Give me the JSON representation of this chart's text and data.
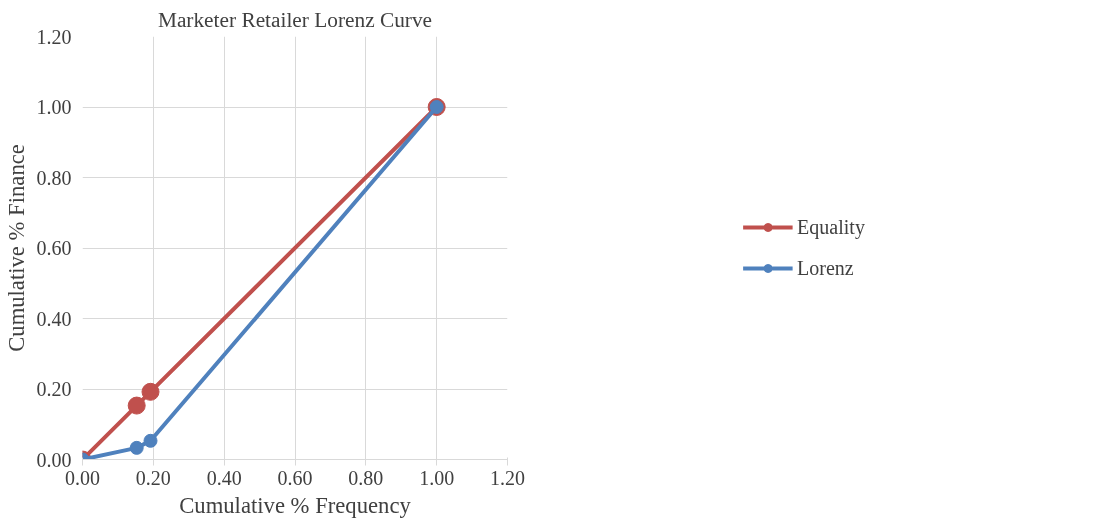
{
  "chart_data": {
    "type": "line",
    "title": "Marketer Retailer Lorenz Curve",
    "xlabel": "Cumulative % Frequency",
    "ylabel": "Cumulative % Finance",
    "x": [
      0,
      0.153,
      0.192,
      1
    ],
    "series": [
      {
        "name": "Equality",
        "color": "#c0504d",
        "values": [
          0,
          0.153,
          0.192,
          1
        ]
      },
      {
        "name": "Lorenz",
        "color": "#4f81bd",
        "values": [
          0,
          0.033,
          0.053,
          1
        ]
      }
    ],
    "xlim": [
      0,
      1.2
    ],
    "ylim": [
      0,
      1.2
    ],
    "xticks": [
      {
        "value": 0,
        "label": "0.00"
      },
      {
        "value": 0.2,
        "label": "0.20"
      },
      {
        "value": 0.4,
        "label": "0.40"
      },
      {
        "value": 0.6,
        "label": "0.60"
      },
      {
        "value": 0.8,
        "label": "0.80"
      },
      {
        "value": 1,
        "label": "1.00"
      },
      {
        "value": 1.2,
        "label": "1.20"
      }
    ],
    "yticks": [
      {
        "value": 0,
        "label": "0.00"
      },
      {
        "value": 0.2,
        "label": "0.20"
      },
      {
        "value": 0.4,
        "label": "0.40"
      },
      {
        "value": 0.6,
        "label": "0.60"
      },
      {
        "value": 0.8,
        "label": "0.80"
      },
      {
        "value": 1,
        "label": "1.00"
      },
      {
        "value": 1.2,
        "label": "1.20"
      }
    ],
    "grid": true,
    "legend": "right",
    "marker": "circle",
    "line_style": "solid"
  }
}
